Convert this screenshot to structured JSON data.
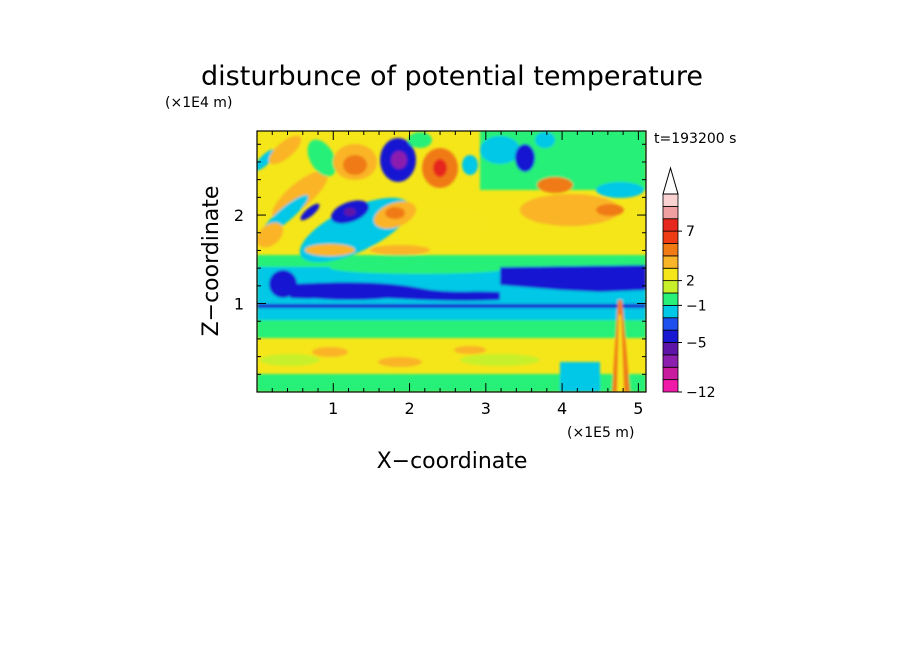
{
  "chart_data": {
    "type": "heatmap",
    "title": "disturbunce of potential temperature",
    "xlabel": "X−coordinate",
    "ylabel": "Z−coordinate",
    "x_unit": "(×1E5 m)",
    "y_unit": "(×1E4 m)",
    "time_label": "t=193200 s",
    "xlim": [
      0,
      5.1
    ],
    "ylim": [
      0,
      2.95
    ],
    "x_ticks": [
      1,
      2,
      3,
      4,
      5
    ],
    "y_ticks": [
      1,
      2
    ],
    "x_tick_labels": [
      "1",
      "2",
      "3",
      "4",
      "5"
    ],
    "y_tick_labels": [
      "1",
      "2"
    ],
    "colorbar": {
      "levels": [
        -12,
        -5,
        -1,
        2,
        7
      ],
      "level_labels": [
        "−12",
        "−5",
        "−1",
        "2",
        "7"
      ],
      "colors": [
        "#f01aa8",
        "#c81b9e",
        "#8c1fae",
        "#5f14a8",
        "#1818d2",
        "#1e50f0",
        "#00c8e6",
        "#28f078",
        "#c8f02a",
        "#f5e61a",
        "#fab428",
        "#f07a14",
        "#f03c14",
        "#e6281e",
        "#f0a0a0",
        "#fad2d2"
      ],
      "extend": "max"
    }
  }
}
